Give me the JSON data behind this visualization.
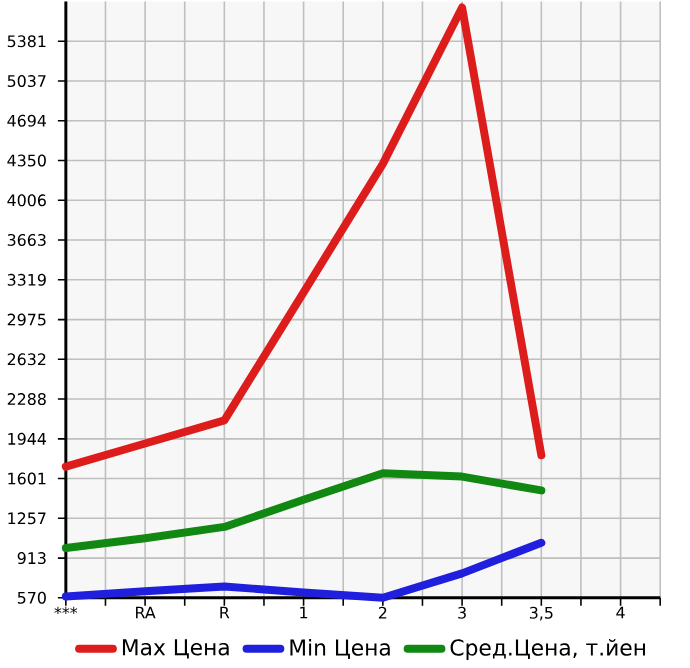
{
  "chart_data": {
    "type": "line",
    "categories": [
      "***",
      "RA",
      "R",
      "1",
      "2",
      "3",
      "3,5",
      "4"
    ],
    "series": [
      {
        "name": "Max Цена",
        "color": "#dd1c1c",
        "values": [
          1704,
          1904,
          2104,
          3210,
          4321,
          5673,
          1802,
          null
        ]
      },
      {
        "name": "Min Цена",
        "color": "#1f1fdd",
        "values": [
          582,
          627,
          668,
          616,
          570,
          781,
          1046,
          null
        ]
      },
      {
        "name": "Сред.Цена, т.йен",
        "color": "#118811",
        "values": [
          1000,
          1085,
          1183,
          1417,
          1647,
          1618,
          1498,
          null
        ]
      }
    ],
    "ylim": [
      570,
      5725
    ],
    "yticks": [
      570,
      913,
      1257,
      1601,
      1944,
      2288,
      2632,
      2975,
      3319,
      3663,
      4006,
      4350,
      4694,
      5037,
      5381
    ],
    "grid": true,
    "legend": "bottom",
    "marker": "none",
    "line_style": "solid"
  }
}
